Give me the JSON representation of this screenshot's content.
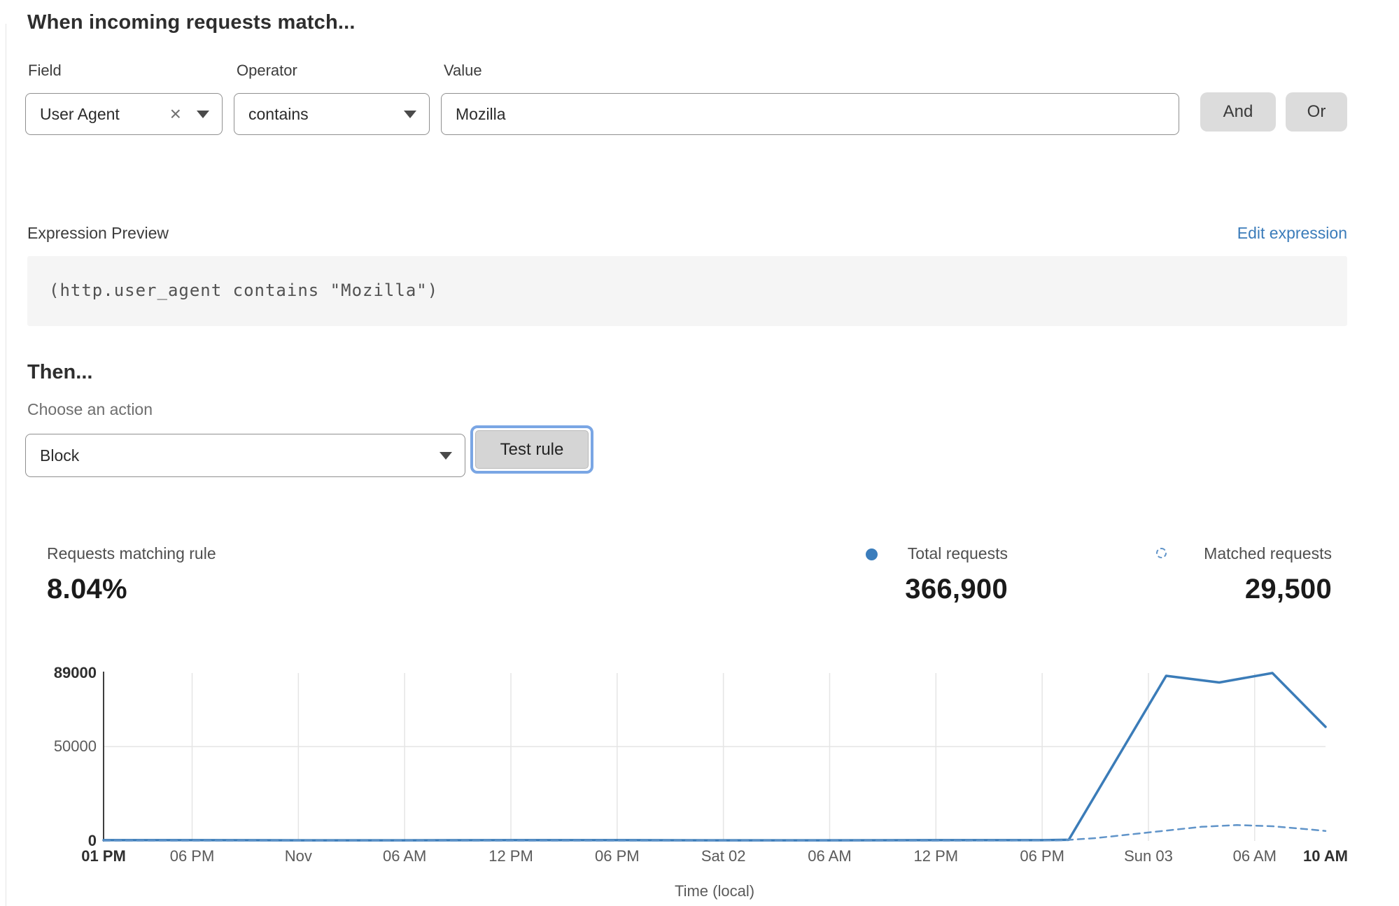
{
  "match_section": {
    "heading": "When incoming requests match...",
    "field": {
      "label": "Field",
      "value": "User Agent"
    },
    "operator": {
      "label": "Operator",
      "value": "contains"
    },
    "value": {
      "label": "Value",
      "value": "Mozilla"
    },
    "and_label": "And",
    "or_label": "Or"
  },
  "expression": {
    "label": "Expression Preview",
    "edit_link": "Edit expression",
    "code": "(http.user_agent contains \"Mozilla\")"
  },
  "action_section": {
    "heading": "Then...",
    "choose_label": "Choose an action",
    "action_value": "Block",
    "test_button": "Test rule"
  },
  "stats": {
    "matching_label": "Requests matching rule",
    "matching_value": "8.04%",
    "total_label": "Total requests",
    "total_value": "366,900",
    "matched_label": "Matched requests",
    "matched_value": "29,500"
  },
  "colors": {
    "link_blue": "#3b7cba",
    "chart_blue": "#3b7cb8",
    "chart_blue_light": "#6094c9",
    "grid_gray": "#e5e5e5",
    "axis_gray": "#3f3f3f",
    "focus_ring": "#7aa6e4"
  },
  "chart_data": {
    "type": "line",
    "title": "",
    "xlabel": "Time (local)",
    "ylabel": "",
    "x_span_hours": 69,
    "ylim": [
      0,
      89000
    ],
    "grid": true,
    "legend_position": "top-right",
    "x_ticks": [
      {
        "label": "01 PM",
        "hour": 0,
        "bold": true,
        "grid": false
      },
      {
        "label": "06 PM",
        "hour": 5,
        "bold": false,
        "grid": true
      },
      {
        "label": "Nov",
        "hour": 11,
        "bold": false,
        "grid": true
      },
      {
        "label": "06 AM",
        "hour": 17,
        "bold": false,
        "grid": true
      },
      {
        "label": "12 PM",
        "hour": 23,
        "bold": false,
        "grid": true
      },
      {
        "label": "06 PM",
        "hour": 29,
        "bold": false,
        "grid": true
      },
      {
        "label": "Sat 02",
        "hour": 35,
        "bold": false,
        "grid": true
      },
      {
        "label": "06 AM",
        "hour": 41,
        "bold": false,
        "grid": true
      },
      {
        "label": "12 PM",
        "hour": 47,
        "bold": false,
        "grid": true
      },
      {
        "label": "06 PM",
        "hour": 53,
        "bold": false,
        "grid": true
      },
      {
        "label": "Sun 03",
        "hour": 59,
        "bold": false,
        "grid": true
      },
      {
        "label": "06 AM",
        "hour": 65,
        "bold": false,
        "grid": true
      },
      {
        "label": "10 AM",
        "hour": 69,
        "bold": true,
        "grid": false
      }
    ],
    "y_ticks": [
      {
        "label": "89000",
        "value": 89000,
        "bold": true,
        "grid": false
      },
      {
        "label": "50000",
        "value": 50000,
        "bold": false,
        "grid": true
      },
      {
        "label": "0",
        "value": 0,
        "bold": true,
        "grid": false
      }
    ],
    "series": [
      {
        "name": "Total requests",
        "style": "solid",
        "points": [
          [
            0,
            400
          ],
          [
            5,
            400
          ],
          [
            11,
            350
          ],
          [
            17,
            350
          ],
          [
            23,
            400
          ],
          [
            29,
            400
          ],
          [
            35,
            350
          ],
          [
            41,
            350
          ],
          [
            47,
            400
          ],
          [
            53,
            400
          ],
          [
            54.5,
            600
          ],
          [
            60,
            87500
          ],
          [
            63,
            84000
          ],
          [
            66,
            89000
          ],
          [
            69,
            60500
          ]
        ]
      },
      {
        "name": "Matched requests",
        "style": "dashed",
        "points": [
          [
            0,
            150
          ],
          [
            6,
            150
          ],
          [
            12,
            150
          ],
          [
            18,
            150
          ],
          [
            24,
            150
          ],
          [
            30,
            150
          ],
          [
            36,
            150
          ],
          [
            42,
            150
          ],
          [
            48,
            150
          ],
          [
            54,
            250
          ],
          [
            56,
            1500
          ],
          [
            58,
            3500
          ],
          [
            60,
            5500
          ],
          [
            62,
            7500
          ],
          [
            64,
            8400
          ],
          [
            66,
            7800
          ],
          [
            68,
            6200
          ],
          [
            69,
            5300
          ]
        ]
      }
    ]
  }
}
